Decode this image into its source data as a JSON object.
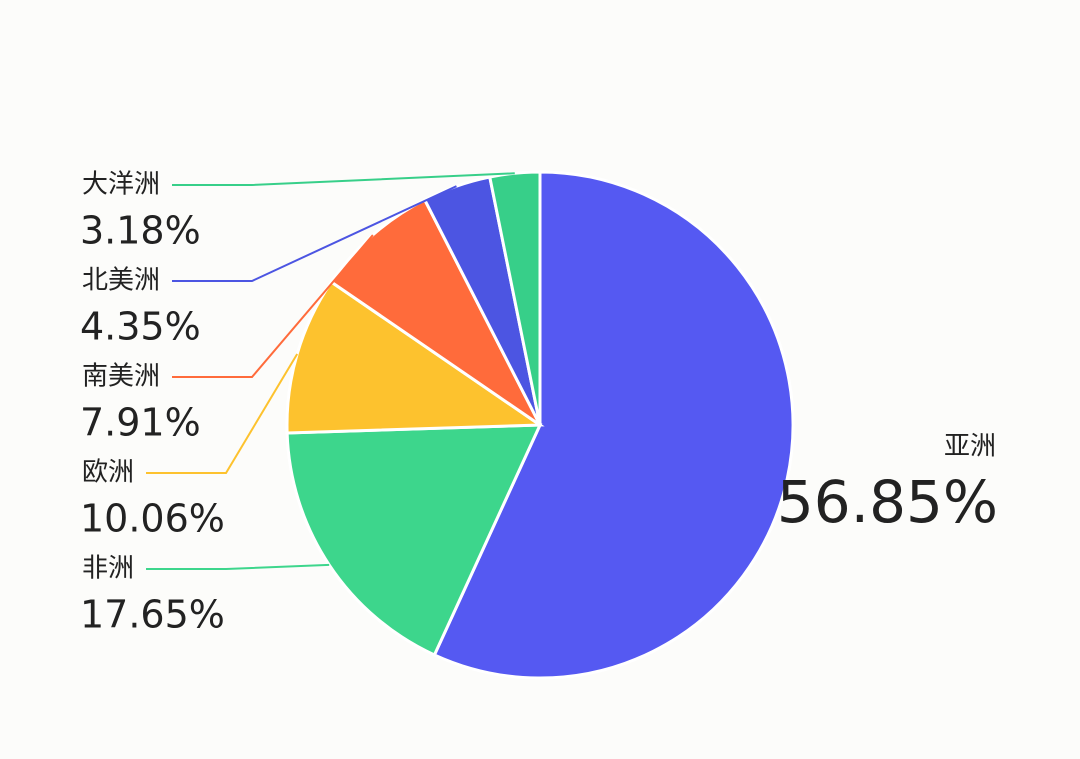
{
  "chart_data": {
    "type": "pie",
    "categories": [
      "亚洲",
      "非洲",
      "欧洲",
      "南美洲",
      "北美洲",
      "大洋洲"
    ],
    "values": [
      56.85,
      17.65,
      10.06,
      7.91,
      4.35,
      3.18
    ],
    "value_labels": [
      "56.85%",
      "17.65%",
      "10.06%",
      "7.91%",
      "4.35%",
      "3.18%"
    ],
    "colors": [
      "#5559f2",
      "#3dd68c",
      "#fdc22e",
      "#ff6b3b",
      "#4c55e2",
      "#37cf89"
    ]
  }
}
